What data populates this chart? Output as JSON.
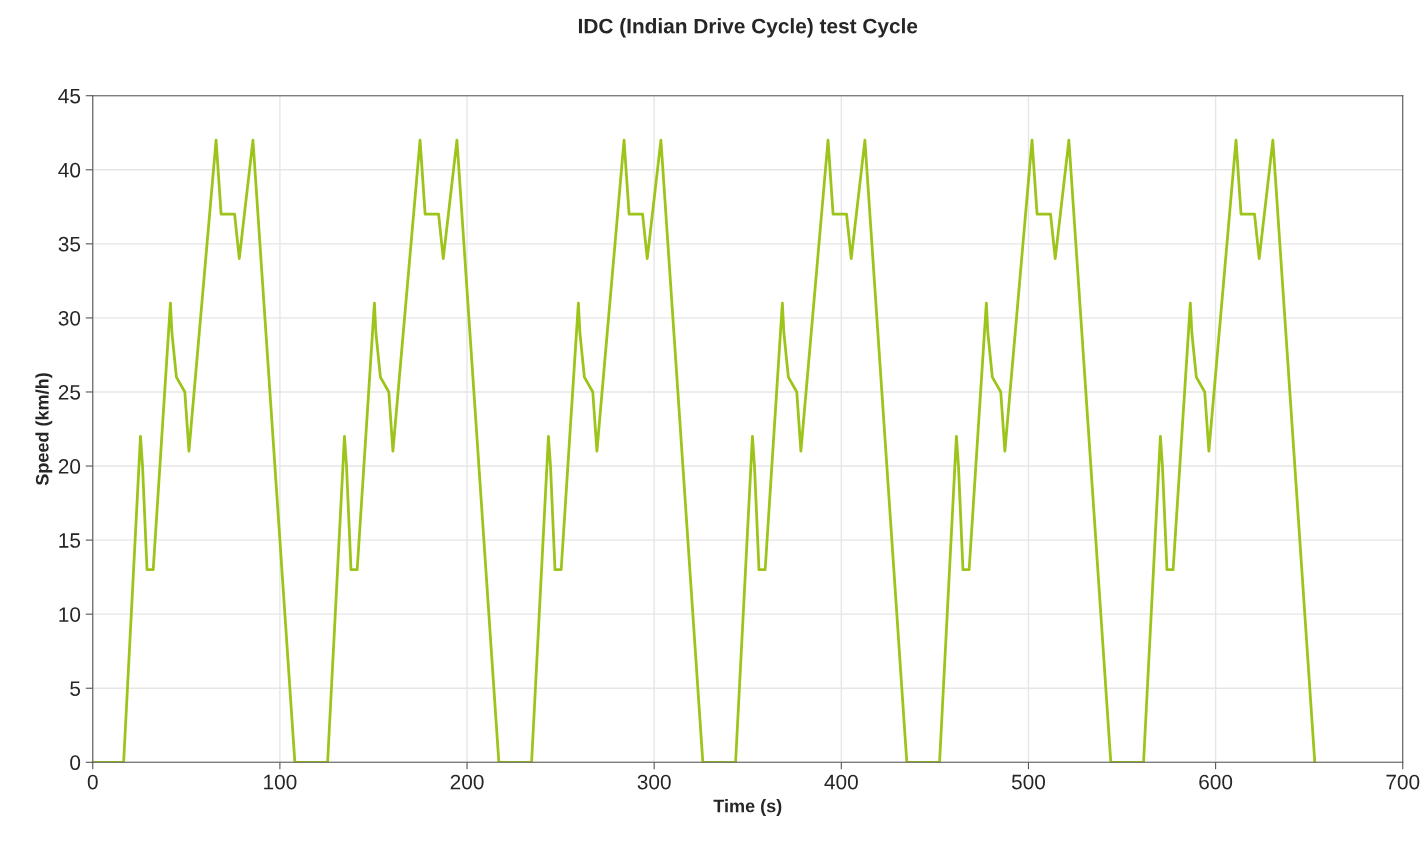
{
  "chart_data": {
    "type": "line",
    "title": "IDC (Indian Drive Cycle) test Cycle",
    "xlabel": "Time (s)",
    "ylabel": "Speed (km/h)",
    "x": [
      0,
      16.5,
      25.5,
      26.6,
      29,
      32.3,
      41.5,
      42.3,
      44.7,
      49.2,
      51.4,
      65.9,
      68.6,
      75.8,
      78.3,
      85.6,
      108,
      125.5,
      134.5,
      135.6,
      138,
      141.3,
      150.5,
      151.3,
      153.7,
      158.2,
      160.4,
      174.9,
      177.6,
      184.8,
      187.3,
      194.6,
      217,
      234.5,
      243.5,
      244.6,
      247,
      250.3,
      259.5,
      260.3,
      262.7,
      267.2,
      269.4,
      283.9,
      286.6,
      293.8,
      296.3,
      303.6,
      326,
      343.5,
      352.5,
      353.6,
      356,
      359.3,
      368.5,
      369.3,
      371.7,
      376.2,
      378.4,
      392.9,
      395.6,
      402.8,
      405.3,
      412.6,
      435,
      452.5,
      461.5,
      462.6,
      465,
      468.3,
      477.5,
      478.3,
      480.7,
      485.2,
      487.4,
      501.9,
      504.6,
      511.8,
      514.3,
      521.6,
      544,
      561.5,
      570.5,
      571.6,
      574,
      577.3,
      586.5,
      587.3,
      589.7,
      594.2,
      596.4,
      610.9,
      613.6,
      620.8,
      623.3,
      630.6,
      653
    ],
    "series": [
      {
        "color": "#9dc41a",
        "values": [
          0,
          0,
          22,
          20,
          13,
          13,
          31,
          29,
          26,
          25,
          21,
          42,
          37,
          37,
          34,
          42,
          0,
          0,
          22,
          20,
          13,
          13,
          31,
          29,
          26,
          25,
          21,
          42,
          37,
          37,
          34,
          42,
          0,
          0,
          22,
          20,
          13,
          13,
          31,
          29,
          26,
          25,
          21,
          42,
          37,
          37,
          34,
          42,
          0,
          0,
          22,
          20,
          13,
          13,
          31,
          29,
          26,
          25,
          21,
          42,
          37,
          37,
          34,
          42,
          0,
          0,
          22,
          20,
          13,
          13,
          31,
          29,
          26,
          25,
          21,
          42,
          37,
          37,
          34,
          42,
          0,
          0,
          22,
          20,
          13,
          13,
          31,
          29,
          26,
          25,
          21,
          42,
          37,
          37,
          34,
          42,
          0
        ]
      }
    ],
    "xlim": [
      0,
      700
    ],
    "xticks": [
      0,
      100,
      200,
      300,
      400,
      500,
      600,
      700
    ],
    "ylim": [
      0,
      45
    ],
    "yticks": [
      0,
      5,
      10,
      15,
      20,
      25,
      30,
      35,
      40,
      45
    ],
    "grid": true,
    "marker": "none",
    "line_style": "solid"
  }
}
